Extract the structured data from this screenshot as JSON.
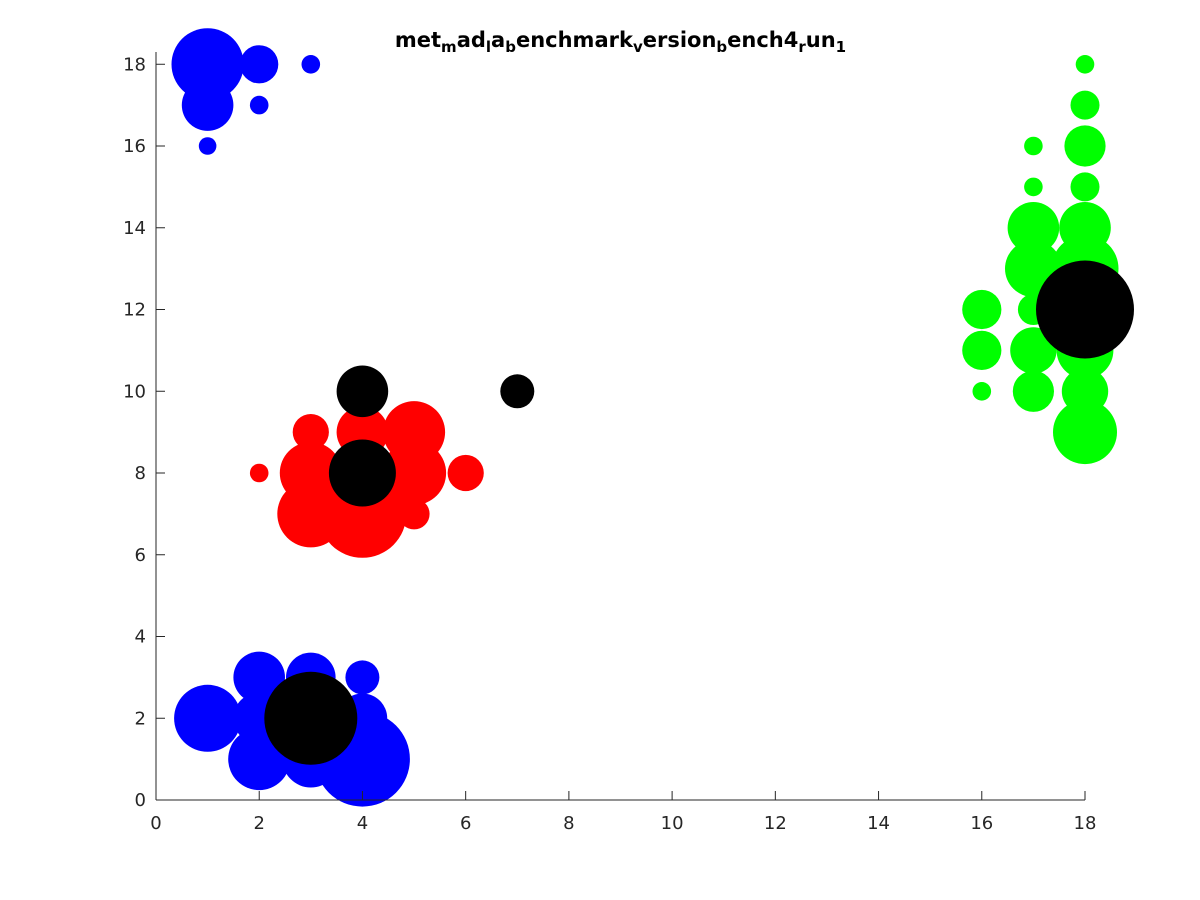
{
  "chart_data": {
    "type": "scatter",
    "title_parts": [
      {
        "t": "met",
        "sub": false
      },
      {
        "t": "m",
        "sub": true
      },
      {
        "t": "ad",
        "sub": false
      },
      {
        "t": "l",
        "sub": true
      },
      {
        "t": "a",
        "sub": false
      },
      {
        "t": "b",
        "sub": true
      },
      {
        "t": "enchmark",
        "sub": false
      },
      {
        "t": "v",
        "sub": true
      },
      {
        "t": "ersion",
        "sub": false
      },
      {
        "t": "b",
        "sub": true
      },
      {
        "t": "ench4",
        "sub": false
      },
      {
        "t": "r",
        "sub": true
      },
      {
        "t": "un",
        "sub": false
      },
      {
        "t": "1",
        "sub": true
      }
    ],
    "xlim": [
      0,
      18
    ],
    "ylim": [
      0,
      18.3
    ],
    "x_ticks": [
      0,
      2,
      4,
      6,
      8,
      10,
      12,
      14,
      16,
      18
    ],
    "y_ticks": [
      0,
      2,
      4,
      6,
      8,
      10,
      12,
      14,
      16,
      18
    ],
    "grid": false,
    "series": [
      {
        "color": "#0000ff",
        "points": [
          {
            "x": 1,
            "y": 18,
            "r": 0.7
          },
          {
            "x": 2,
            "y": 18,
            "r": 0.37
          },
          {
            "x": 3,
            "y": 18,
            "r": 0.18
          },
          {
            "x": 1,
            "y": 17,
            "r": 0.5
          },
          {
            "x": 2,
            "y": 17,
            "r": 0.18
          },
          {
            "x": 1,
            "y": 16,
            "r": 0.17
          },
          {
            "x": 1,
            "y": 2,
            "r": 0.65
          },
          {
            "x": 2,
            "y": 1,
            "r": 0.6
          },
          {
            "x": 2,
            "y": 2,
            "r": 0.5
          },
          {
            "x": 2,
            "y": 3,
            "r": 0.5
          },
          {
            "x": 3,
            "y": 1,
            "r": 0.55
          },
          {
            "x": 3,
            "y": 3,
            "r": 0.48
          },
          {
            "x": 4,
            "y": 3,
            "r": 0.33
          },
          {
            "x": 4,
            "y": 2,
            "r": 0.48
          },
          {
            "x": 4,
            "y": 1,
            "r": 0.92
          }
        ]
      },
      {
        "color": "#ff0000",
        "points": [
          {
            "x": 3,
            "y": 7,
            "r": 0.65
          },
          {
            "x": 4,
            "y": 7,
            "r": 0.85
          },
          {
            "x": 3,
            "y": 8,
            "r": 0.6
          },
          {
            "x": 3,
            "y": 9,
            "r": 0.35
          },
          {
            "x": 2,
            "y": 8,
            "r": 0.18
          },
          {
            "x": 4,
            "y": 9,
            "r": 0.5
          },
          {
            "x": 5,
            "y": 9,
            "r": 0.6
          },
          {
            "x": 5,
            "y": 8,
            "r": 0.62
          },
          {
            "x": 5,
            "y": 7,
            "r": 0.3
          },
          {
            "x": 6,
            "y": 8,
            "r": 0.35
          }
        ]
      },
      {
        "color": "#00ff00",
        "points": [
          {
            "x": 18,
            "y": 18,
            "r": 0.18
          },
          {
            "x": 18,
            "y": 17,
            "r": 0.28
          },
          {
            "x": 18,
            "y": 16,
            "r": 0.4
          },
          {
            "x": 18,
            "y": 15,
            "r": 0.28
          },
          {
            "x": 18,
            "y": 14,
            "r": 0.5
          },
          {
            "x": 18,
            "y": 13,
            "r": 0.65
          },
          {
            "x": 18,
            "y": 11,
            "r": 0.55
          },
          {
            "x": 18,
            "y": 10,
            "r": 0.45
          },
          {
            "x": 18,
            "y": 9,
            "r": 0.62
          },
          {
            "x": 17,
            "y": 16,
            "r": 0.18
          },
          {
            "x": 17,
            "y": 15,
            "r": 0.18
          },
          {
            "x": 17,
            "y": 14,
            "r": 0.5
          },
          {
            "x": 17,
            "y": 13,
            "r": 0.55
          },
          {
            "x": 17,
            "y": 12,
            "r": 0.3
          },
          {
            "x": 17,
            "y": 11,
            "r": 0.45
          },
          {
            "x": 17,
            "y": 10,
            "r": 0.4
          },
          {
            "x": 16,
            "y": 12,
            "r": 0.38
          },
          {
            "x": 16,
            "y": 11,
            "r": 0.38
          },
          {
            "x": 16,
            "y": 10,
            "r": 0.18
          }
        ]
      },
      {
        "color": "#000000",
        "points": [
          {
            "x": 3,
            "y": 2,
            "r": 0.9
          },
          {
            "x": 4,
            "y": 8,
            "r": 0.65
          },
          {
            "x": 4,
            "y": 10,
            "r": 0.5
          },
          {
            "x": 7,
            "y": 10,
            "r": 0.33
          },
          {
            "x": 18,
            "y": 12,
            "r": 0.95
          }
        ]
      }
    ]
  }
}
